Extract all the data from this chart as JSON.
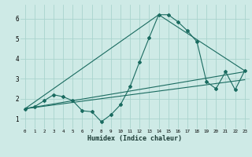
{
  "xlabel": "Humidex (Indice chaleur)",
  "bg_color": "#ceeae6",
  "grid_color": "#aad4ce",
  "line_color": "#1a6b60",
  "xlim": [
    -0.5,
    23.5
  ],
  "ylim": [
    0.5,
    6.7
  ],
  "xticks": [
    0,
    1,
    2,
    3,
    4,
    5,
    6,
    7,
    8,
    9,
    10,
    11,
    12,
    13,
    14,
    15,
    16,
    17,
    18,
    19,
    20,
    21,
    22,
    23
  ],
  "yticks": [
    1,
    2,
    3,
    4,
    5,
    6
  ],
  "series": [
    [
      0,
      1.5
    ],
    [
      1,
      1.6
    ],
    [
      2,
      1.9
    ],
    [
      3,
      2.2
    ],
    [
      4,
      2.1
    ],
    [
      5,
      1.9
    ],
    [
      6,
      1.4
    ],
    [
      7,
      1.35
    ],
    [
      8,
      0.85
    ],
    [
      9,
      1.2
    ],
    [
      10,
      1.7
    ],
    [
      11,
      2.6
    ],
    [
      12,
      3.85
    ],
    [
      13,
      5.05
    ],
    [
      14,
      6.2
    ],
    [
      15,
      6.2
    ],
    [
      16,
      5.85
    ],
    [
      17,
      5.4
    ],
    [
      18,
      4.85
    ],
    [
      19,
      2.85
    ],
    [
      20,
      2.5
    ],
    [
      21,
      3.35
    ],
    [
      22,
      2.45
    ],
    [
      23,
      3.4
    ]
  ],
  "line_straight": [
    [
      0,
      1.5
    ],
    [
      23,
      3.35
    ]
  ],
  "line_triangle": [
    [
      0,
      1.5
    ],
    [
      14,
      6.2
    ],
    [
      23,
      3.4
    ]
  ],
  "line_mid": [
    [
      0,
      1.5
    ],
    [
      23,
      2.95
    ]
  ]
}
